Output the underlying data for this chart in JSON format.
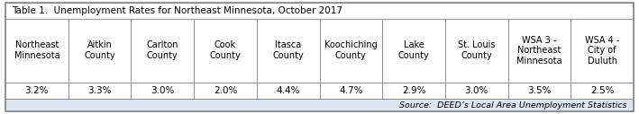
{
  "title": "Table 1.  Unemployment Rates for Northeast Minnesota, October 2017",
  "headers": [
    [
      "Northeast",
      "Minnesota"
    ],
    [
      "Aitkin",
      "County"
    ],
    [
      "Carlton",
      "County"
    ],
    [
      "Cook",
      "County"
    ],
    [
      "Itasca",
      "County"
    ],
    [
      "Koochiching",
      "County"
    ],
    [
      "Lake",
      "County"
    ],
    [
      "St. Louis",
      "County"
    ],
    [
      "WSA 3 -",
      "Northeast",
      "Minnesota"
    ],
    [
      "WSA 4 -",
      "City of",
      "Duluth"
    ]
  ],
  "values": [
    "3.2%",
    "3.3%",
    "3.0%",
    "2.0%",
    "4.4%",
    "4.7%",
    "2.9%",
    "3.0%",
    "3.5%",
    "2.5%"
  ],
  "source": "Source:  DEED’s Local Area Unemployment Statistics",
  "title_fontsize": 7.5,
  "header_fontsize": 7.0,
  "value_fontsize": 7.5,
  "source_fontsize": 6.8,
  "border_color": "#888888",
  "outer_lw": 1.2,
  "inner_lw": 0.6,
  "title_bg": "#ffffff",
  "header_bg": "#ffffff",
  "value_bg": "#ffffff",
  "source_bg": "#dce6f1",
  "text_color": "#000000"
}
